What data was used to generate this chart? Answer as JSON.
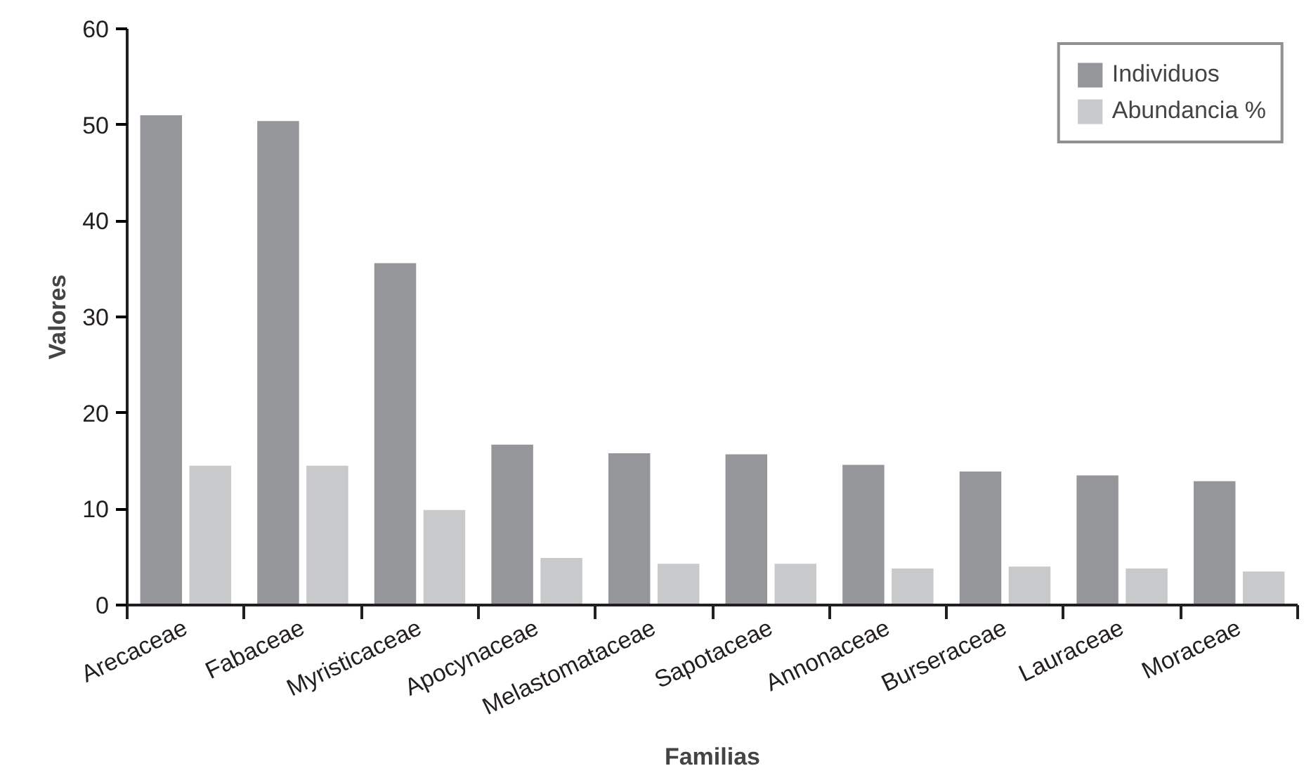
{
  "chart_data": {
    "type": "bar",
    "xlabel": "Familias",
    "ylabel": "Valores",
    "categories": [
      "Arecaceae",
      "Fabaceae",
      "Myristicaceae",
      "Apocynaceae",
      "Melastomataceae",
      "Sapotaceae",
      "Annonaceae",
      "Burseraceae",
      "Lauraceae",
      "Moraceae"
    ],
    "series": [
      {
        "name": "Individuos",
        "color": "#959699",
        "values": [
          51.0,
          50.4,
          35.6,
          16.7,
          15.8,
          15.7,
          14.6,
          13.9,
          13.5,
          12.9
        ]
      },
      {
        "name": "Abundancia %",
        "color": "#c8c9cb",
        "values": [
          14.5,
          14.5,
          9.9,
          4.9,
          4.3,
          4.3,
          3.8,
          4.0,
          3.8,
          3.5
        ]
      }
    ],
    "ylim": [
      0,
      60
    ],
    "yticks": [
      0,
      10,
      20,
      30,
      40,
      50,
      60
    ],
    "grid": false,
    "legend": "top right"
  }
}
